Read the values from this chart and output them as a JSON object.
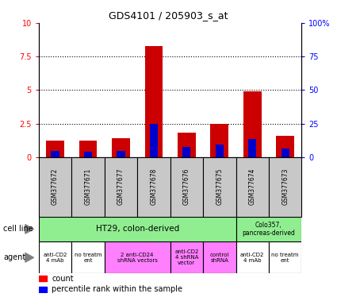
{
  "title": "GDS4101 / 205903_s_at",
  "samples": [
    "GSM377672",
    "GSM377671",
    "GSM377677",
    "GSM377678",
    "GSM377676",
    "GSM377675",
    "GSM377674",
    "GSM377673"
  ],
  "count_values": [
    1.2,
    1.2,
    1.4,
    8.3,
    1.8,
    2.45,
    4.9,
    1.6
  ],
  "percentile_values": [
    0.45,
    0.42,
    0.45,
    2.5,
    0.75,
    0.95,
    1.35,
    0.65
  ],
  "ylim_left": [
    0,
    10
  ],
  "ylim_right": [
    0,
    100
  ],
  "yticks_left": [
    0,
    2.5,
    5,
    7.5,
    10
  ],
  "yticks_right": [
    0,
    25,
    50,
    75,
    100
  ],
  "ytick_labels_left": [
    "0",
    "2.5",
    "5",
    "7.5",
    "10"
  ],
  "ytick_labels_right": [
    "0",
    "25",
    "50",
    "75",
    "100%"
  ],
  "bar_color_count": "#CC0000",
  "bar_color_percentile": "#0000CC",
  "bar_width": 0.55,
  "sample_box_color": "#C8C8C8",
  "agent_groups": [
    {
      "label": "anti-CD2\n4 mAb",
      "start": 0,
      "end": 1,
      "color": "#FFFFFF"
    },
    {
      "label": "no treatm\nent",
      "start": 1,
      "end": 2,
      "color": "#FFFFFF"
    },
    {
      "label": "2 anti-CD24\nshRNA vectors",
      "start": 2,
      "end": 4,
      "color": "#FF80FF"
    },
    {
      "label": "anti-CD2\n4 shRNA\nvector",
      "start": 4,
      "end": 5,
      "color": "#FF80FF"
    },
    {
      "label": "control\nshRNA",
      "start": 5,
      "end": 6,
      "color": "#FF80FF"
    },
    {
      "label": "anti-CD2\n4 mAb",
      "start": 6,
      "end": 7,
      "color": "#FFFFFF"
    },
    {
      "label": "no treatm\nent",
      "start": 7,
      "end": 8,
      "color": "#FFFFFF"
    }
  ]
}
